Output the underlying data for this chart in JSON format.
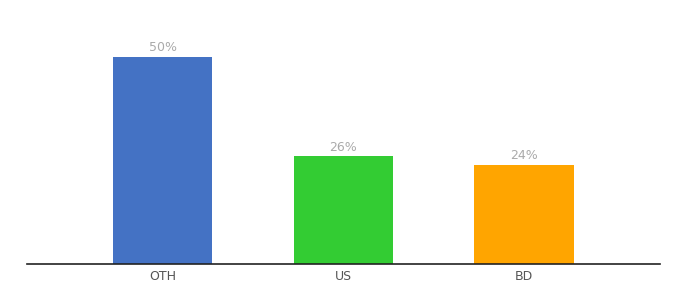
{
  "categories": [
    "OTH",
    "US",
    "BD"
  ],
  "values": [
    50,
    26,
    24
  ],
  "labels": [
    "50%",
    "26%",
    "24%"
  ],
  "bar_colors": [
    "#4472C4",
    "#33CC33",
    "#FFA500"
  ],
  "background_color": "#ffffff",
  "ylim": [
    0,
    58
  ],
  "label_fontsize": 9,
  "tick_fontsize": 9,
  "label_color": "#aaaaaa",
  "bar_width": 0.55,
  "figsize": [
    6.8,
    3.0
  ],
  "dpi": 100
}
